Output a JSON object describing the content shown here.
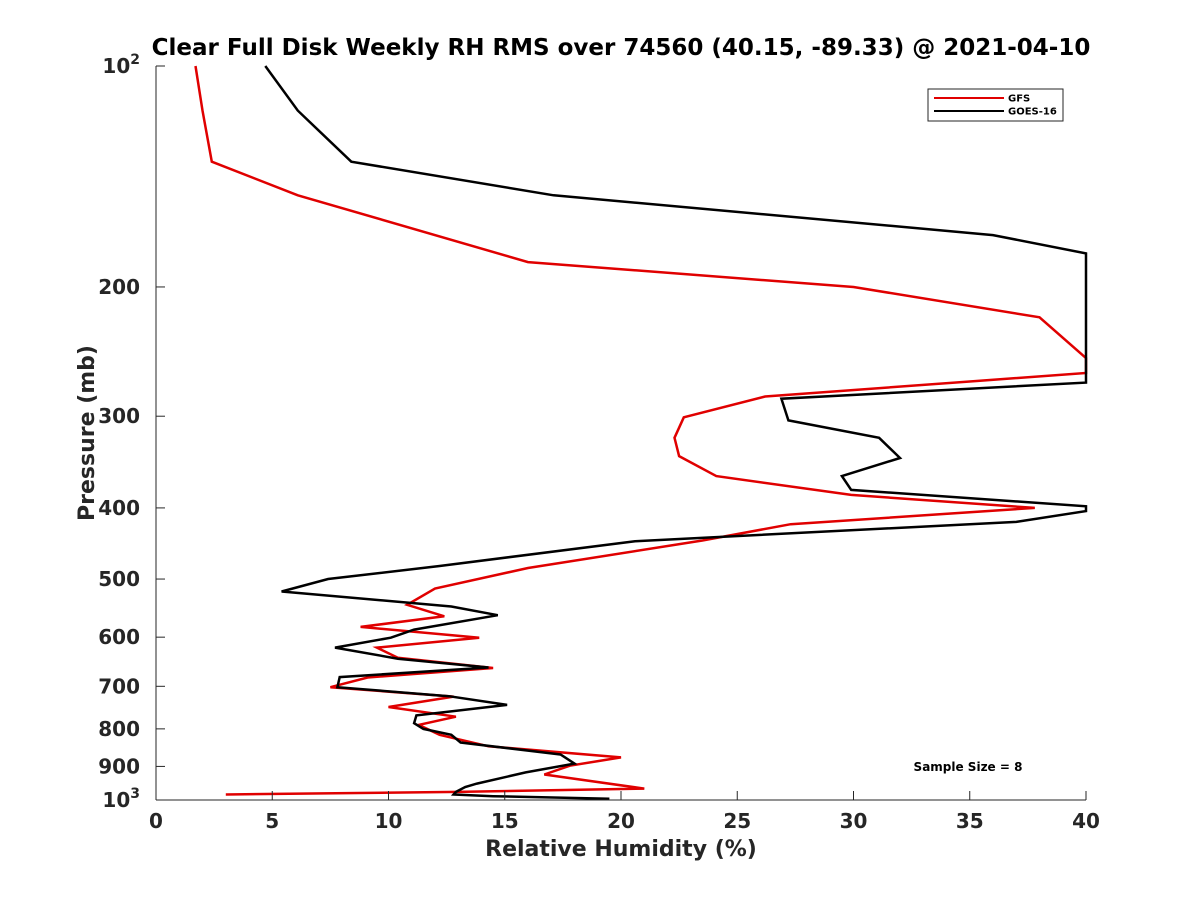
{
  "chart_data": {
    "type": "line",
    "title": "Clear Full Disk Weekly RH RMS over 74560 (40.15, -89.33) @ 2021-04-10",
    "xlabel": "Relative Humidity (%)",
    "ylabel": "Pressure (mb)",
    "xlim": [
      0,
      40
    ],
    "ylim": [
      100,
      1000
    ],
    "y_scale": "log",
    "y_reversed": true,
    "grid": false,
    "legend_position": "top-right",
    "x_ticks": [
      0,
      5,
      10,
      15,
      20,
      25,
      30,
      35,
      40
    ],
    "y_ticks": [
      {
        "value": 100,
        "label": "10",
        "sup": "2"
      },
      {
        "value": 200,
        "label": "200"
      },
      {
        "value": 300,
        "label": "300"
      },
      {
        "value": 400,
        "label": "400"
      },
      {
        "value": 500,
        "label": "500"
      },
      {
        "value": 600,
        "label": "600"
      },
      {
        "value": 700,
        "label": "700"
      },
      {
        "value": 800,
        "label": "800"
      },
      {
        "value": 900,
        "label": "900"
      },
      {
        "value": 1000,
        "label": "10",
        "sup": "3"
      }
    ],
    "series": [
      {
        "name": "GFS",
        "color": "#e00000",
        "points": [
          [
            1.7,
            100
          ],
          [
            2.0,
            115
          ],
          [
            2.4,
            135
          ],
          [
            6.1,
            150
          ],
          [
            16.0,
            185
          ],
          [
            30.0,
            200
          ],
          [
            38.0,
            220
          ],
          [
            40.0,
            250
          ],
          [
            40.0,
            262
          ],
          [
            26.2,
            282
          ],
          [
            22.7,
            301
          ],
          [
            22.3,
            321
          ],
          [
            22.5,
            340
          ],
          [
            24.1,
            362
          ],
          [
            29.9,
            384
          ],
          [
            37.8,
            400
          ],
          [
            27.3,
            421
          ],
          [
            23.5,
            443
          ],
          [
            16.0,
            483
          ],
          [
            12.0,
            515
          ],
          [
            10.8,
            542
          ],
          [
            12.4,
            562
          ],
          [
            8.8,
            581
          ],
          [
            13.9,
            601
          ],
          [
            9.5,
            620
          ],
          [
            10.4,
            640
          ],
          [
            14.5,
            661
          ],
          [
            9.1,
            681
          ],
          [
            7.5,
            702
          ],
          [
            12.8,
            723
          ],
          [
            10.0,
            747
          ],
          [
            12.9,
            770
          ],
          [
            11.3,
            790
          ],
          [
            12.2,
            815
          ],
          [
            14.3,
            845
          ],
          [
            20.0,
            875
          ],
          [
            17.8,
            898
          ],
          [
            16.7,
            923
          ],
          [
            21.0,
            965
          ],
          [
            13.0,
            975
          ],
          [
            3.0,
            983
          ]
        ]
      },
      {
        "name": "GOES-16",
        "color": "#000000",
        "points": [
          [
            4.7,
            100
          ],
          [
            6.1,
            115
          ],
          [
            8.4,
            135
          ],
          [
            17.1,
            150
          ],
          [
            36.0,
            170
          ],
          [
            40.0,
            180
          ],
          [
            40.0,
            270
          ],
          [
            26.9,
            284
          ],
          [
            27.2,
            304
          ],
          [
            31.1,
            321
          ],
          [
            32.0,
            342
          ],
          [
            29.5,
            362
          ],
          [
            29.9,
            378
          ],
          [
            40.0,
            398
          ],
          [
            40.0,
            404
          ],
          [
            37.0,
            418
          ],
          [
            20.6,
            444
          ],
          [
            12.2,
            480
          ],
          [
            7.4,
            500
          ],
          [
            5.4,
            520
          ],
          [
            12.7,
            545
          ],
          [
            14.7,
            560
          ],
          [
            11.1,
            586
          ],
          [
            10.1,
            601
          ],
          [
            7.7,
            620
          ],
          [
            10.4,
            642
          ],
          [
            14.3,
            660
          ],
          [
            7.9,
            680
          ],
          [
            7.8,
            702
          ],
          [
            12.6,
            722
          ],
          [
            15.1,
            742
          ],
          [
            11.2,
            767
          ],
          [
            11.1,
            786
          ],
          [
            11.5,
            800
          ],
          [
            12.7,
            815
          ],
          [
            13.1,
            835
          ],
          [
            17.4,
            867
          ],
          [
            18.0,
            892
          ],
          [
            15.9,
            917
          ],
          [
            13.8,
            950
          ],
          [
            13.3,
            960
          ],
          [
            12.9,
            975
          ],
          [
            12.8,
            983
          ],
          [
            14.5,
            988
          ],
          [
            19.5,
            996
          ]
        ]
      }
    ],
    "annotations": [
      {
        "text": "Sample Size = 8"
      }
    ]
  }
}
